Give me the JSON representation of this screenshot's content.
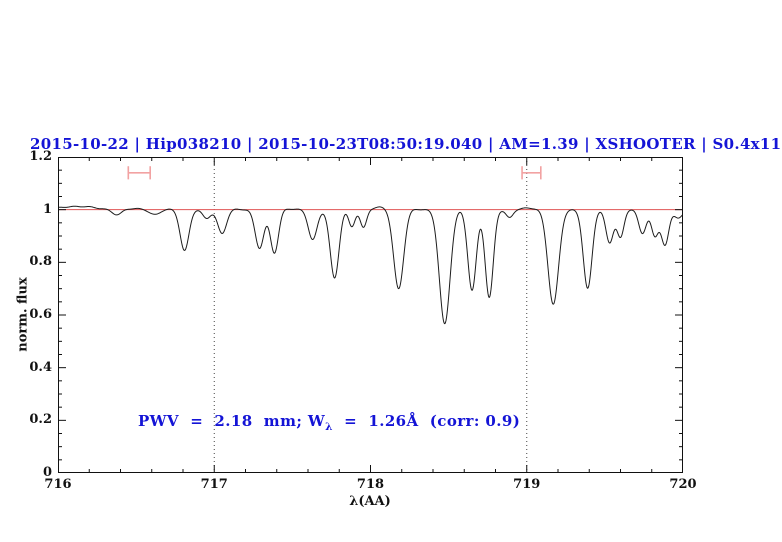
{
  "chart_data": {
    "type": "line",
    "title": "2015-10-22 | Hip038210 | 2015-10-23T08:50:19.040 | AM=1.39 | XSHOOTER | S0.4x11",
    "xlabel": "λ(AA)",
    "ylabel": "norm. flux",
    "xlim": [
      716,
      720
    ],
    "ylim": [
      0,
      1.2
    ],
    "x_major_ticks": [
      716,
      717,
      718,
      719,
      720
    ],
    "x_major_tick_labels": [
      "716",
      "717",
      "718",
      "719",
      "720"
    ],
    "x_minor_step": 0.2,
    "y_major_ticks": [
      0,
      0.2,
      0.4,
      0.6,
      0.8,
      1,
      1.2
    ],
    "y_major_tick_labels": [
      "0",
      "0.2",
      "0.4",
      "0.6",
      "0.8",
      "1",
      "1.2"
    ],
    "y_minor_step": 0.05,
    "grid": false,
    "continuum_level": 1.0,
    "reference_vlines": [
      717,
      719
    ],
    "telluric_markers": [
      {
        "x": 716.52,
        "half_width": 0.07,
        "y": 1.14,
        "cap_half_height": 0.025
      },
      {
        "x": 719.03,
        "half_width": 0.06,
        "y": 1.14,
        "cap_half_height": 0.025
      }
    ],
    "absorption_lines": [
      {
        "center": 716.38,
        "depth": 0.02,
        "sigma": 0.03
      },
      {
        "center": 716.62,
        "depth": 0.022,
        "sigma": 0.035
      },
      {
        "center": 716.81,
        "depth": 0.155,
        "sigma": 0.028
      },
      {
        "center": 716.95,
        "depth": 0.034,
        "sigma": 0.025
      },
      {
        "center": 717.05,
        "depth": 0.09,
        "sigma": 0.028
      },
      {
        "center": 717.29,
        "depth": 0.145,
        "sigma": 0.028
      },
      {
        "center": 717.385,
        "depth": 0.165,
        "sigma": 0.026
      },
      {
        "center": 717.63,
        "depth": 0.115,
        "sigma": 0.028
      },
      {
        "center": 717.77,
        "depth": 0.26,
        "sigma": 0.028
      },
      {
        "center": 717.88,
        "depth": 0.065,
        "sigma": 0.02
      },
      {
        "center": 717.955,
        "depth": 0.068,
        "sigma": 0.02
      },
      {
        "center": 718.18,
        "depth": 0.3,
        "sigma": 0.032
      },
      {
        "center": 718.475,
        "depth": 0.435,
        "sigma": 0.034
      },
      {
        "center": 718.65,
        "depth": 0.305,
        "sigma": 0.027
      },
      {
        "center": 718.76,
        "depth": 0.335,
        "sigma": 0.026
      },
      {
        "center": 718.89,
        "depth": 0.03,
        "sigma": 0.022
      },
      {
        "center": 719.17,
        "depth": 0.36,
        "sigma": 0.034
      },
      {
        "center": 719.39,
        "depth": 0.3,
        "sigma": 0.028
      },
      {
        "center": 719.53,
        "depth": 0.125,
        "sigma": 0.024
      },
      {
        "center": 719.6,
        "depth": 0.105,
        "sigma": 0.022
      },
      {
        "center": 719.74,
        "depth": 0.09,
        "sigma": 0.024
      },
      {
        "center": 719.82,
        "depth": 0.1,
        "sigma": 0.022
      },
      {
        "center": 719.885,
        "depth": 0.135,
        "sigma": 0.024
      },
      {
        "center": 719.97,
        "depth": 0.03,
        "sigma": 0.028
      }
    ],
    "continuum_bumps": [
      {
        "center": 716.12,
        "height": 0.013,
        "sigma": 0.1
      },
      {
        "center": 716.55,
        "height": 0.004,
        "sigma": 0.1
      },
      {
        "center": 717.48,
        "height": 0.004,
        "sigma": 0.04
      },
      {
        "center": 718.06,
        "height": 0.008,
        "sigma": 0.045
      },
      {
        "center": 719.02,
        "height": 0.005,
        "sigma": 0.05
      }
    ],
    "annotation": {
      "pwv_mm": 2.18,
      "equivalent_width_angstrom": 1.26,
      "correlation": 0.9,
      "text_pre": "PWV  =  2.18  mm; W",
      "text_sub": "λ",
      "text_post": "  =  1.26Å  (corr: 0.9)"
    },
    "colors": {
      "title": "#1414d6",
      "annotation": "#1414d6",
      "continuum_line": "#e05555",
      "telluric_marker": "#f2a2a2",
      "spectrum": "#1c1c1c",
      "vline": "#444444",
      "frame": "#111111"
    },
    "legend": null
  }
}
